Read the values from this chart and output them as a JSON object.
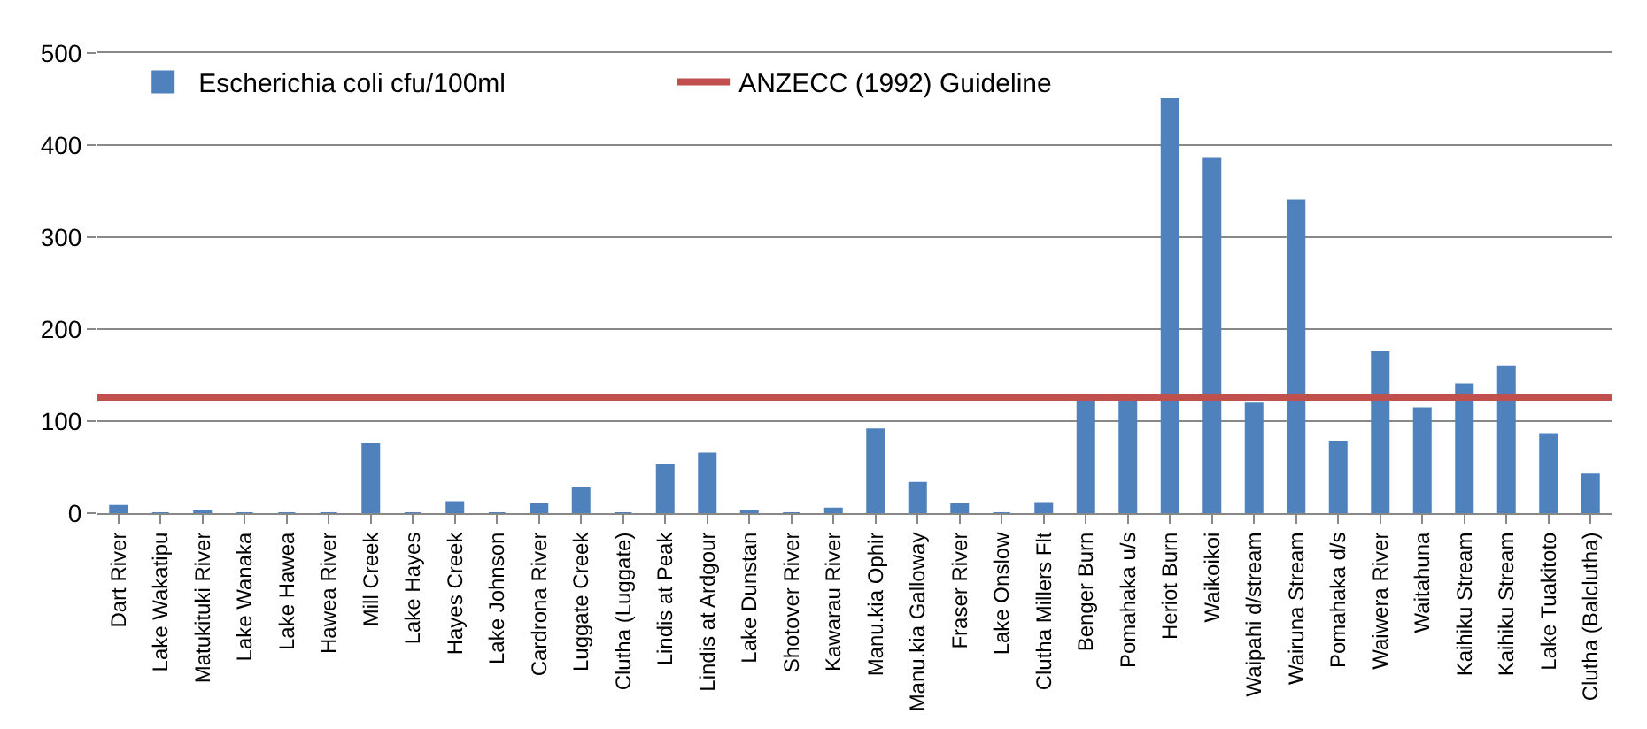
{
  "chart_data": {
    "type": "bar",
    "categories": [
      "Dart River",
      "Lake Wakatipu",
      "Matukituki River",
      "Lake Wanaka",
      "Lake Hawea",
      "Hawea River",
      "Mill Creek",
      "Lake Hayes",
      "Hayes Creek",
      "Lake Johnson",
      "Cardrona River",
      "Luggate Creek",
      "Clutha (Luggate)",
      "Lindis at Peak",
      "Lindis at Ardgour",
      "Lake Dunstan",
      "Shotover River",
      "Kawarau River",
      "Manu.kia Ophir",
      "Manu.kia Galloway",
      "Fraser River",
      "Lake Onslow",
      "Clutha Millers Flt",
      "Benger Burn",
      "Pomahaka u/s",
      "Heriot Burn",
      "Waikoikoi",
      "Waipahi d/stream",
      "Wairuna Stream",
      "Pomahaka d/s",
      "Waiwera River",
      "Waitahuna",
      "Kaihiku Stream",
      "Kaihiku Stream",
      "Lake Tuakitoto",
      "Clutha (Balclutha)"
    ],
    "series": [
      {
        "name": "Escherichia coli cfu/100ml",
        "color": "#4f81bd",
        "values": [
          8,
          0,
          2,
          0,
          0,
          0,
          75,
          0,
          12,
          0,
          10,
          27,
          0,
          52,
          65,
          2,
          0,
          5,
          91,
          33,
          10,
          0,
          11,
          124,
          124,
          450,
          385,
          120,
          340,
          78,
          175,
          114,
          140,
          159,
          86,
          42
        ]
      }
    ],
    "ref_lines": [
      {
        "axis": "y",
        "value": 126,
        "label": "ANZECC (1992) Guideline",
        "color": "#c0504d"
      }
    ],
    "ylim": [
      0,
      500
    ],
    "yticks": [
      0,
      100,
      200,
      300,
      400,
      500
    ],
    "grid": "y",
    "legend": "top left"
  }
}
